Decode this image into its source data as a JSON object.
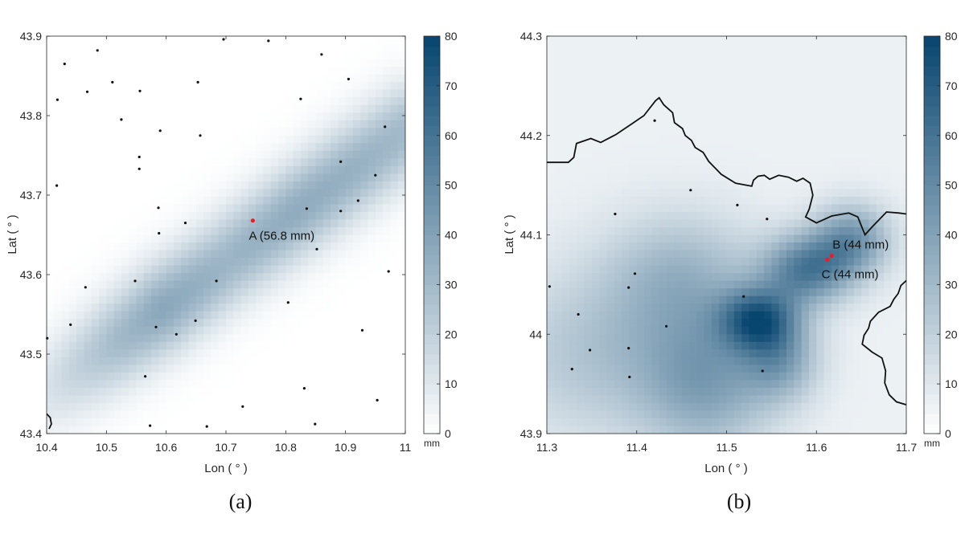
{
  "colors": {
    "cmap_low": "#ffffff",
    "cmap_high": "#08456f",
    "station": "#111111",
    "highlight": "#e0202a",
    "border": "#111111"
  },
  "panels": [
    {
      "id": "a",
      "caption": "(a)",
      "xlabel": "Lon ( ° )",
      "ylabel": "Lat ( ° )",
      "xlim": [
        10.4,
        11.0
      ],
      "ylim": [
        43.4,
        43.9
      ],
      "xticks": [
        "10.4",
        "10.5",
        "10.6",
        "10.7",
        "10.8",
        "10.9",
        "11"
      ],
      "yticks": [
        "43.4",
        "43.5",
        "43.6",
        "43.7",
        "43.8",
        "43.9"
      ],
      "colorbar": {
        "min": 0,
        "max": 80,
        "ticks": [
          "0",
          "10",
          "20",
          "30",
          "40",
          "50",
          "60",
          "70",
          "80"
        ],
        "unit": "mm"
      },
      "field": {
        "type": "linear_band",
        "p0": [
          10.4,
          43.45
        ],
        "p1": [
          11.0,
          43.78
        ],
        "bandwidth": 0.04,
        "profile": [
          [
            0,
            12
          ],
          [
            0.2,
            30
          ],
          [
            0.32,
            38
          ],
          [
            0.5,
            32
          ],
          [
            0.7,
            36
          ],
          [
            0.85,
            34
          ],
          [
            1,
            30
          ]
        ]
      },
      "stations": [
        [
          10.43,
          43.865
        ],
        [
          10.485,
          43.882
        ],
        [
          10.418,
          43.82
        ],
        [
          10.468,
          43.83
        ],
        [
          10.51,
          43.842
        ],
        [
          10.556,
          43.831
        ],
        [
          10.525,
          43.795
        ],
        [
          10.653,
          43.842
        ],
        [
          10.696,
          43.896
        ],
        [
          10.771,
          43.894
        ],
        [
          10.825,
          43.821
        ],
        [
          10.86,
          43.877
        ],
        [
          10.905,
          43.846
        ],
        [
          10.59,
          43.781
        ],
        [
          10.657,
          43.775
        ],
        [
          10.966,
          43.786
        ],
        [
          10.555,
          43.748
        ],
        [
          10.555,
          43.733
        ],
        [
          10.417,
          43.712
        ],
        [
          10.892,
          43.742
        ],
        [
          10.95,
          43.725
        ],
        [
          10.587,
          43.684
        ],
        [
          10.632,
          43.665
        ],
        [
          10.835,
          43.683
        ],
        [
          10.892,
          43.68
        ],
        [
          10.921,
          43.693
        ],
        [
          10.588,
          43.652
        ],
        [
          10.852,
          43.632
        ],
        [
          10.465,
          43.584
        ],
        [
          10.548,
          43.592
        ],
        [
          10.684,
          43.592
        ],
        [
          10.972,
          43.604
        ],
        [
          10.804,
          43.565
        ],
        [
          10.44,
          43.537
        ],
        [
          10.583,
          43.534
        ],
        [
          10.617,
          43.525
        ],
        [
          10.649,
          43.542
        ],
        [
          10.928,
          43.53
        ],
        [
          10.401,
          43.52
        ],
        [
          10.565,
          43.472
        ],
        [
          10.831,
          43.457
        ],
        [
          10.953,
          43.442
        ],
        [
          10.728,
          43.434
        ],
        [
          10.573,
          43.41
        ],
        [
          10.668,
          43.409
        ],
        [
          10.849,
          43.412
        ]
      ],
      "highlights": [
        {
          "lon": 10.745,
          "lat": 43.668,
          "label": "A (56.8 mm)"
        }
      ],
      "borders": [
        [
          [
            10.4,
            43.425
          ],
          [
            10.406,
            43.42
          ],
          [
            10.408,
            43.412
          ],
          [
            10.404,
            43.406
          ]
        ]
      ]
    },
    {
      "id": "b",
      "caption": "(b)",
      "xlabel": "Lon ( ° )",
      "ylabel": "Lat ( ° )",
      "xlim": [
        11.3,
        11.7
      ],
      "ylim": [
        43.9,
        44.3
      ],
      "xticks": [
        "11.3",
        "11.4",
        "11.5",
        "11.6",
        "11.7"
      ],
      "yticks": [
        "43.9",
        "44",
        "44.1",
        "44.2",
        "44.3"
      ],
      "colorbar": {
        "min": 0,
        "max": 80,
        "ticks": [
          "0",
          "10",
          "20",
          "30",
          "40",
          "50",
          "60",
          "70",
          "80"
        ],
        "unit": "mm"
      },
      "field": {
        "type": "blobs",
        "background": 6,
        "blobs": [
          [
            11.535,
            44.015,
            0.03,
            0.022,
            52
          ],
          [
            11.59,
            44.065,
            0.035,
            0.025,
            48
          ],
          [
            11.64,
            44.095,
            0.03,
            0.025,
            38
          ],
          [
            11.45,
            44.06,
            0.06,
            0.045,
            22
          ],
          [
            11.37,
            43.98,
            0.09,
            0.06,
            20
          ],
          [
            11.48,
            43.95,
            0.05,
            0.05,
            28
          ],
          [
            11.56,
            43.975,
            0.03,
            0.03,
            30
          ]
        ]
      },
      "stations": [
        [
          11.42,
          44.215
        ],
        [
          11.46,
          44.145
        ],
        [
          11.512,
          44.13
        ],
        [
          11.545,
          44.116
        ],
        [
          11.376,
          44.121
        ],
        [
          11.398,
          44.061
        ],
        [
          11.391,
          44.047
        ],
        [
          11.303,
          44.048
        ],
        [
          11.335,
          44.02
        ],
        [
          11.519,
          44.038
        ],
        [
          11.433,
          44.008
        ],
        [
          11.348,
          43.984
        ],
        [
          11.391,
          43.986
        ],
        [
          11.328,
          43.965
        ],
        [
          11.392,
          43.957
        ],
        [
          11.54,
          43.963
        ]
      ],
      "highlights": [
        {
          "lon": 11.617,
          "lat": 44.079,
          "label": "B (44 mm)"
        },
        {
          "lon": 11.612,
          "lat": 44.075,
          "label": "C (44 mm)"
        }
      ],
      "borders": [
        [
          [
            11.3,
            44.173
          ],
          [
            11.324,
            44.173
          ],
          [
            11.33,
            44.178
          ],
          [
            11.333,
            44.192
          ],
          [
            11.349,
            44.197
          ],
          [
            11.36,
            44.193
          ],
          [
            11.377,
            44.201
          ],
          [
            11.395,
            44.212
          ],
          [
            11.408,
            44.22
          ],
          [
            11.421,
            44.235
          ],
          [
            11.425,
            44.238
          ],
          [
            11.43,
            44.231
          ],
          [
            11.44,
            44.223
          ],
          [
            11.442,
            44.213
          ],
          [
            11.451,
            44.207
          ],
          [
            11.454,
            44.2
          ],
          [
            11.461,
            44.195
          ],
          [
            11.465,
            44.188
          ],
          [
            11.474,
            44.183
          ],
          [
            11.48,
            44.174
          ],
          [
            11.494,
            44.161
          ],
          [
            11.51,
            44.152
          ],
          [
            11.528,
            44.149
          ],
          [
            11.53,
            44.155
          ],
          [
            11.535,
            44.159
          ],
          [
            11.542,
            44.16
          ],
          [
            11.548,
            44.156
          ],
          [
            11.558,
            44.16
          ],
          [
            11.569,
            44.158
          ],
          [
            11.578,
            44.154
          ],
          [
            11.585,
            44.157
          ],
          [
            11.593,
            44.152
          ],
          [
            11.596,
            44.14
          ],
          [
            11.592,
            44.126
          ],
          [
            11.588,
            44.118
          ],
          [
            11.6,
            44.112
          ],
          [
            11.617,
            44.119
          ],
          [
            11.636,
            44.122
          ],
          [
            11.646,
            44.118
          ],
          [
            11.654,
            44.1
          ],
          [
            11.662,
            44.108
          ],
          [
            11.678,
            44.123
          ],
          [
            11.692,
            44.122
          ],
          [
            11.7,
            44.121
          ]
        ],
        [
          [
            11.7,
            44.054
          ],
          [
            11.694,
            44.049
          ],
          [
            11.691,
            44.041
          ],
          [
            11.686,
            44.035
          ],
          [
            11.682,
            44.028
          ],
          [
            11.669,
            44.022
          ],
          [
            11.66,
            44.013
          ],
          [
            11.658,
            44.006
          ],
          [
            11.653,
            43.999
          ],
          [
            11.651,
            43.99
          ],
          [
            11.662,
            43.982
          ],
          [
            11.673,
            43.976
          ],
          [
            11.677,
            43.963
          ],
          [
            11.676,
            43.951
          ],
          [
            11.681,
            43.939
          ],
          [
            11.689,
            43.932
          ],
          [
            11.7,
            43.929
          ]
        ]
      ]
    }
  ]
}
